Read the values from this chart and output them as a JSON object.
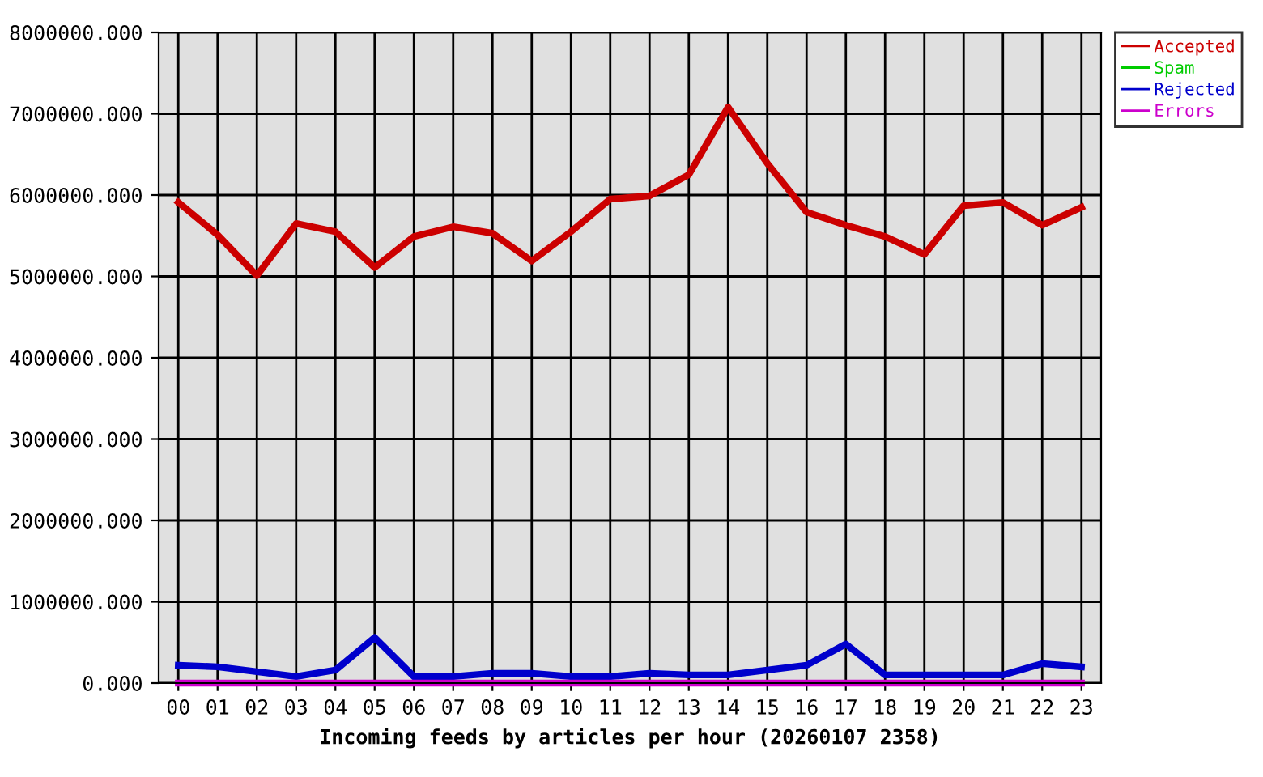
{
  "chart_data": {
    "type": "line",
    "xlabel": "Incoming feeds by articles per hour (20260107 2358)",
    "categories": [
      "00",
      "01",
      "02",
      "03",
      "04",
      "05",
      "06",
      "07",
      "08",
      "09",
      "10",
      "11",
      "12",
      "13",
      "14",
      "15",
      "16",
      "17",
      "18",
      "19",
      "20",
      "21",
      "22",
      "23"
    ],
    "series": [
      {
        "name": "Accepted",
        "color": "#cc0000",
        "values": [
          5910000,
          5510000,
          5010000,
          5650000,
          5550000,
          5110000,
          5490000,
          5610000,
          5530000,
          5190000,
          5550000,
          5950000,
          5990000,
          6250000,
          7080000,
          6390000,
          5790000,
          5630000,
          5490000,
          5270000,
          5870000,
          5910000,
          5630000,
          5850000
        ]
      },
      {
        "name": "Spam",
        "color": "#00cc00",
        "values": [
          null,
          null,
          null,
          null,
          null,
          null,
          null,
          null,
          null,
          null,
          null,
          null,
          null,
          null,
          null,
          null,
          null,
          null,
          null,
          null,
          null,
          null,
          null,
          null
        ]
      },
      {
        "name": "Rejected",
        "color": "#0000cc",
        "values": [
          220000,
          200000,
          140000,
          80000,
          160000,
          560000,
          80000,
          80000,
          120000,
          120000,
          80000,
          80000,
          120000,
          100000,
          100000,
          160000,
          220000,
          480000,
          100000,
          100000,
          100000,
          100000,
          240000,
          200000
        ]
      },
      {
        "name": "Errors",
        "color": "#cc00cc",
        "values": [
          0,
          0,
          0,
          0,
          0,
          0,
          0,
          0,
          0,
          0,
          0,
          0,
          0,
          0,
          0,
          0,
          0,
          0,
          0,
          0,
          0,
          0,
          0,
          0
        ]
      }
    ],
    "ylim": [
      0,
      8000000
    ],
    "yticks": [
      {
        "value": 0,
        "label": "0.000"
      },
      {
        "value": 1000000,
        "label": "1000000.000"
      },
      {
        "value": 2000000,
        "label": "2000000.000"
      },
      {
        "value": 3000000,
        "label": "3000000.000"
      },
      {
        "value": 4000000,
        "label": "4000000.000"
      },
      {
        "value": 5000000,
        "label": "5000000.000"
      },
      {
        "value": 6000000,
        "label": "6000000.000"
      },
      {
        "value": 7000000,
        "label": "7000000.000"
      },
      {
        "value": 8000000,
        "label": "8000000.000"
      }
    ],
    "grid": true,
    "legend": "top right",
    "line_style": "solid"
  }
}
